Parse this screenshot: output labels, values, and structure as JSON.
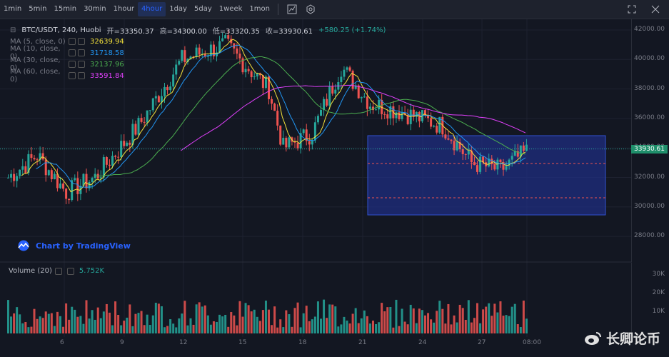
{
  "toolbar": {
    "timeframes": [
      "1min",
      "5min",
      "15min",
      "30min",
      "1hour",
      "4hour",
      "1day",
      "5day",
      "1week",
      "1mon"
    ],
    "active": "4hour"
  },
  "legend": {
    "symbol": "BTC/USDT, 240, Huobi",
    "open_label": "开",
    "open": "33350.37",
    "high_label": "高",
    "high": "34300.00",
    "low_label": "低",
    "low": "33320.35",
    "close_label": "收",
    "close": "33930.61",
    "change": "+580.25 (+1.74%)"
  },
  "ma": [
    {
      "label": "MA (5, close, 0)",
      "value": "32639.94",
      "color": "#f5e23b"
    },
    {
      "label": "MA (10, close, 0)",
      "value": "31718.58",
      "color": "#2196f3"
    },
    {
      "label": "MA (30, close, 0)",
      "value": "32137.96",
      "color": "#4caf50"
    },
    {
      "label": "MA (60, close, 0)",
      "value": "33591.84",
      "color": "#e040fb"
    }
  ],
  "price_axis": [
    "42000.00",
    "40000.00",
    "38000.00",
    "36000.00",
    "34000.00",
    "32000.00",
    "30000.00",
    "28000.00"
  ],
  "current_price": "33930.61",
  "volume": {
    "label": "Volume (20)",
    "value": "5.752K"
  },
  "volume_axis": [
    "30K",
    "20K",
    "10K"
  ],
  "time_axis": [
    "6",
    "9",
    "12",
    "15",
    "18",
    "21",
    "24",
    "27",
    "08:00"
  ],
  "badge": "Chart by TradingView",
  "watermark": "长卿论币",
  "colors": {
    "up": "#26a69a",
    "down": "#ef5350",
    "bg": "#131722",
    "box": "#1f2f86"
  }
}
